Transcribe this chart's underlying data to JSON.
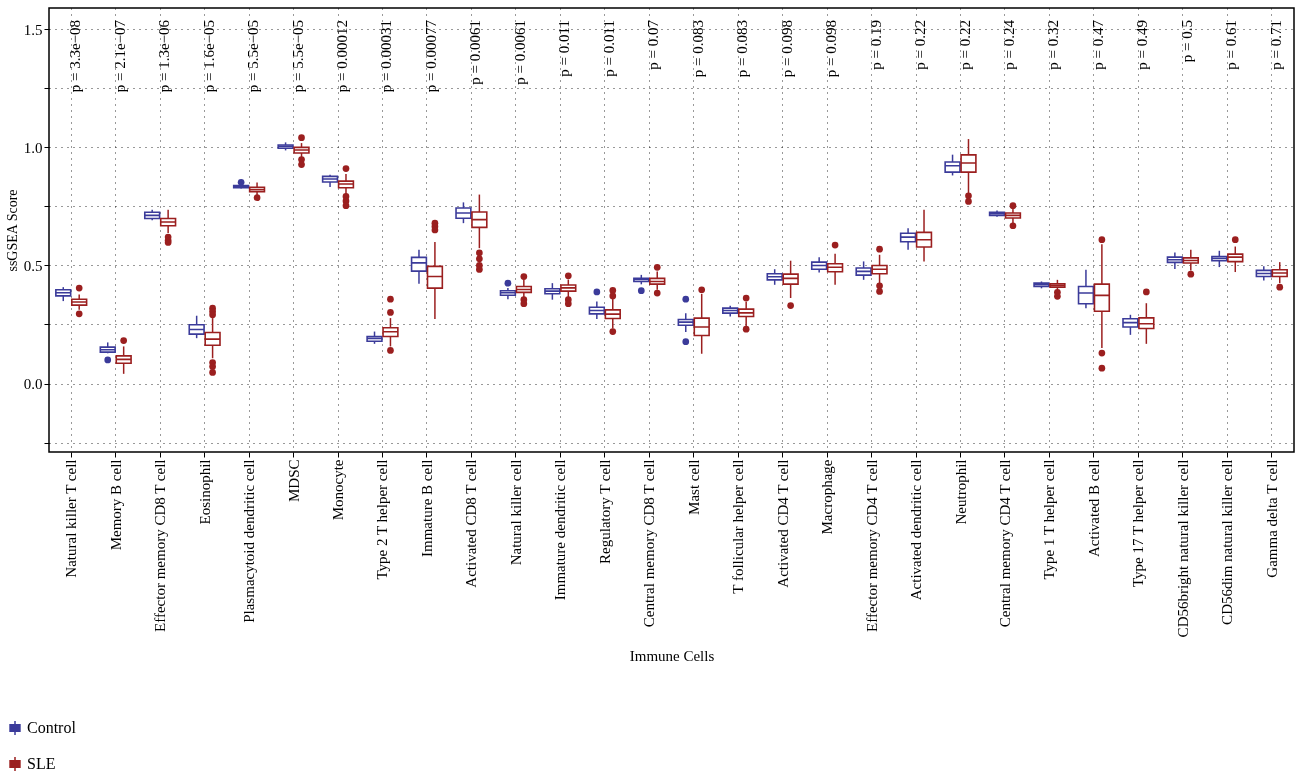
{
  "chart_data": {
    "type": "box",
    "xlabel": "Immune Cells",
    "ylabel": "ssGSEA Score",
    "categories": [
      "Natural killer T cell",
      "Memory B cell",
      "Effector memory CD8 T cell",
      "Eosinophil",
      "Plasmacytoid dendritic cell",
      "MDSC",
      "Monocyte",
      "Type 2 T helper cell",
      "Immature B cell",
      "Activated CD8 T cell",
      "Natural killer cell",
      "Immature dendritic cell",
      "Regulatory T cell",
      "Central memory CD8 T cell",
      "Mast cell",
      "T follicular helper cell",
      "Activated CD4 T cell",
      "Macrophage",
      "Effector memory CD4 T cell",
      "Activated dendritic cell",
      "Neutrophil",
      "Central memory CD4 T cell",
      "Type 1 T helper cell",
      "Activated B cell",
      "Type 17 T helper cell",
      "CD56bright natural killer cell",
      "CD56dim natural killer cell",
      "Gamma delta T cell"
    ],
    "ylim": [
      -0.29,
      1.59
    ],
    "yticks": [
      {
        "value": -0.25,
        "label": null
      },
      {
        "value": 0,
        "label": "0.0"
      },
      {
        "value": 0.25,
        "label": null
      },
      {
        "value": 0.5,
        "label": "0.5"
      },
      {
        "value": 0.75,
        "label": null
      },
      {
        "value": 1,
        "label": "1.0"
      },
      {
        "value": 1.25,
        "label": null
      },
      {
        "value": 1.5,
        "label": "1.5"
      }
    ],
    "grid": true,
    "legend": "bottom left",
    "series": [
      {
        "name": "Control",
        "color": "#3b3b9a",
        "boxes": [
          {
            "low": 0.349,
            "q1": 0.371,
            "median": 0.384,
            "q3": 0.397,
            "high": 0.408
          },
          {
            "low": 0.128,
            "q1": 0.133,
            "median": 0.143,
            "q3": 0.154,
            "high": 0.174,
            "outliers": [
              0.1
            ]
          },
          {
            "low": 0.691,
            "q1": 0.699,
            "median": 0.712,
            "q3": 0.725,
            "high": 0.736
          },
          {
            "low": 0.192,
            "q1": 0.209,
            "median": 0.229,
            "q3": 0.249,
            "high": 0.287
          },
          {
            "low": 0.826,
            "q1": 0.829,
            "median": 0.833,
            "q3": 0.838,
            "high": 0.84,
            "outliers": [
              0.852
            ]
          },
          {
            "low": 0.987,
            "q1": 0.996,
            "median": 1.004,
            "q3": 1.01,
            "high": 1.021
          },
          {
            "low": 0.832,
            "q1": 0.853,
            "median": 0.866,
            "q3": 0.877,
            "high": 0.884
          },
          {
            "low": 0.168,
            "q1": 0.179,
            "median": 0.191,
            "q3": 0.199,
            "high": 0.22
          },
          {
            "low": 0.422,
            "q1": 0.476,
            "median": 0.511,
            "q3": 0.534,
            "high": 0.566
          },
          {
            "low": 0.679,
            "q1": 0.7,
            "median": 0.722,
            "q3": 0.743,
            "high": 0.767
          },
          {
            "low": 0.357,
            "q1": 0.374,
            "median": 0.384,
            "q3": 0.393,
            "high": 0.404,
            "outliers": [
              0.425
            ]
          },
          {
            "low": 0.355,
            "q1": 0.38,
            "median": 0.391,
            "q3": 0.401,
            "high": 0.425
          },
          {
            "low": 0.273,
            "q1": 0.295,
            "median": 0.309,
            "q3": 0.323,
            "high": 0.347,
            "outliers": [
              0.388
            ]
          },
          {
            "low": 0.42,
            "q1": 0.432,
            "median": 0.441,
            "q3": 0.446,
            "high": 0.46,
            "outliers": [
              0.393
            ]
          },
          {
            "low": 0.218,
            "q1": 0.247,
            "median": 0.26,
            "q3": 0.271,
            "high": 0.298,
            "outliers": [
              0.357,
              0.177
            ]
          },
          {
            "low": 0.284,
            "q1": 0.298,
            "median": 0.309,
            "q3": 0.319,
            "high": 0.329
          },
          {
            "low": 0.418,
            "q1": 0.439,
            "median": 0.452,
            "q3": 0.465,
            "high": 0.484
          },
          {
            "low": 0.47,
            "q1": 0.484,
            "median": 0.5,
            "q3": 0.514,
            "high": 0.535
          },
          {
            "low": 0.439,
            "q1": 0.459,
            "median": 0.475,
            "q3": 0.489,
            "high": 0.517
          },
          {
            "low": 0.566,
            "q1": 0.6,
            "median": 0.62,
            "q3": 0.636,
            "high": 0.657
          },
          {
            "low": 0.881,
            "q1": 0.895,
            "median": 0.922,
            "q3": 0.938,
            "high": 0.969
          },
          {
            "low": 0.706,
            "q1": 0.712,
            "median": 0.719,
            "q3": 0.725,
            "high": 0.733
          },
          {
            "low": 0.403,
            "q1": 0.411,
            "median": 0.418,
            "q3": 0.425,
            "high": 0.432
          },
          {
            "low": 0.319,
            "q1": 0.338,
            "median": 0.383,
            "q3": 0.411,
            "high": 0.482
          },
          {
            "low": 0.206,
            "q1": 0.239,
            "median": 0.258,
            "q3": 0.274,
            "high": 0.291
          },
          {
            "low": 0.485,
            "q1": 0.513,
            "median": 0.524,
            "q3": 0.535,
            "high": 0.555
          },
          {
            "low": 0.493,
            "q1": 0.52,
            "median": 0.53,
            "q3": 0.538,
            "high": 0.562
          },
          {
            "low": 0.436,
            "q1": 0.453,
            "median": 0.466,
            "q3": 0.479,
            "high": 0.496
          }
        ]
      },
      {
        "name": "SLE",
        "color": "#9b1f1f",
        "boxes": [
          {
            "low": 0.312,
            "q1": 0.332,
            "median": 0.345,
            "q3": 0.357,
            "high": 0.377,
            "outliers": [
              0.404,
              0.295
            ]
          },
          {
            "low": 0.041,
            "q1": 0.086,
            "median": 0.102,
            "q3": 0.117,
            "high": 0.157,
            "outliers": [
              0.182
            ]
          },
          {
            "low": 0.637,
            "q1": 0.668,
            "median": 0.684,
            "q3": 0.699,
            "high": 0.736,
            "outliers": [
              0.62,
              0.606,
              0.597
            ]
          },
          {
            "low": 0.107,
            "q1": 0.162,
            "median": 0.188,
            "q3": 0.216,
            "high": 0.277,
            "outliers": [
              0.319,
              0.305,
              0.291,
              0.089,
              0.072,
              0.047
            ]
          },
          {
            "low": 0.797,
            "q1": 0.812,
            "median": 0.821,
            "q3": 0.831,
            "high": 0.851,
            "outliers": [
              0.787
            ]
          },
          {
            "low": 0.958,
            "q1": 0.976,
            "median": 0.989,
            "q3": 1.0,
            "high": 1.018,
            "outliers": [
              1.041,
              0.948,
              0.927
            ]
          },
          {
            "low": 0.799,
            "q1": 0.829,
            "median": 0.845,
            "q3": 0.857,
            "high": 0.887,
            "outliers": [
              0.91,
              0.792,
              0.773,
              0.753
            ]
          },
          {
            "low": 0.157,
            "q1": 0.199,
            "median": 0.219,
            "q3": 0.236,
            "high": 0.277,
            "outliers": [
              0.357,
              0.301,
              0.14
            ]
          },
          {
            "low": 0.273,
            "q1": 0.404,
            "median": 0.453,
            "q3": 0.496,
            "high": 0.599,
            "outliers": [
              0.679,
              0.665,
              0.65
            ]
          },
          {
            "low": 0.573,
            "q1": 0.661,
            "median": 0.694,
            "q3": 0.726,
            "high": 0.8,
            "outliers": [
              0.553,
              0.528,
              0.5,
              0.483
            ]
          },
          {
            "low": 0.364,
            "q1": 0.386,
            "median": 0.398,
            "q3": 0.411,
            "high": 0.44,
            "outliers": [
              0.453,
              0.355,
              0.338
            ]
          },
          {
            "low": 0.362,
            "q1": 0.391,
            "median": 0.405,
            "q3": 0.417,
            "high": 0.44,
            "outliers": [
              0.456,
              0.355,
              0.338
            ]
          },
          {
            "low": 0.233,
            "q1": 0.275,
            "median": 0.294,
            "q3": 0.312,
            "high": 0.36,
            "outliers": [
              0.394,
              0.371,
              0.22
            ]
          },
          {
            "low": 0.397,
            "q1": 0.421,
            "median": 0.432,
            "q3": 0.445,
            "high": 0.474,
            "outliers": [
              0.492,
              0.383
            ]
          },
          {
            "low": 0.126,
            "q1": 0.203,
            "median": 0.239,
            "q3": 0.277,
            "high": 0.38,
            "outliers": [
              0.397
            ]
          },
          {
            "low": 0.235,
            "q1": 0.284,
            "median": 0.299,
            "q3": 0.315,
            "high": 0.347,
            "outliers": [
              0.362,
              0.23
            ]
          },
          {
            "low": 0.362,
            "q1": 0.421,
            "median": 0.445,
            "q3": 0.463,
            "high": 0.52,
            "outliers": [
              0.33
            ]
          },
          {
            "low": 0.418,
            "q1": 0.473,
            "median": 0.492,
            "q3": 0.507,
            "high": 0.549,
            "outliers": [
              0.586
            ]
          },
          {
            "low": 0.42,
            "q1": 0.465,
            "median": 0.484,
            "q3": 0.5,
            "high": 0.545,
            "outliers": [
              0.569,
              0.414,
              0.39
            ]
          },
          {
            "low": 0.517,
            "q1": 0.578,
            "median": 0.609,
            "q3": 0.64,
            "high": 0.736
          },
          {
            "low": 0.8,
            "q1": 0.895,
            "median": 0.934,
            "q3": 0.968,
            "high": 1.035,
            "outliers": [
              0.795,
              0.771
            ]
          },
          {
            "low": 0.68,
            "q1": 0.701,
            "median": 0.712,
            "q3": 0.722,
            "high": 0.743,
            "outliers": [
              0.753,
              0.668
            ]
          },
          {
            "low": 0.391,
            "q1": 0.408,
            "median": 0.415,
            "q3": 0.422,
            "high": 0.439,
            "outliers": [
              0.386,
              0.369
            ]
          },
          {
            "low": 0.15,
            "q1": 0.306,
            "median": 0.373,
            "q3": 0.421,
            "high": 0.59,
            "outliers": [
              0.609,
              0.129,
              0.065
            ]
          },
          {
            "low": 0.168,
            "q1": 0.233,
            "median": 0.253,
            "q3": 0.278,
            "high": 0.34,
            "outliers": [
              0.388
            ]
          },
          {
            "low": 0.478,
            "q1": 0.51,
            "median": 0.521,
            "q3": 0.532,
            "high": 0.566,
            "outliers": [
              0.463
            ]
          },
          {
            "low": 0.472,
            "q1": 0.516,
            "median": 0.535,
            "q3": 0.548,
            "high": 0.58,
            "outliers": [
              0.609
            ]
          },
          {
            "low": 0.425,
            "q1": 0.453,
            "median": 0.468,
            "q3": 0.482,
            "high": 0.514,
            "outliers": [
              0.408
            ]
          }
        ]
      }
    ],
    "annotations": [
      "p = 3.3e−08",
      "p = 2.1e−07",
      "p = 1.3e−06",
      "p = 1.6e−05",
      "p = 5.5e−05",
      "p = 5.5e−05",
      "p = 0.00012",
      "p = 0.00031",
      "p = 0.00077",
      "p = 0.0061",
      "p = 0.0061",
      "p = 0.011",
      "p = 0.011",
      "p = 0.07",
      "p = 0.083",
      "p = 0.083",
      "p = 0.098",
      "p = 0.098",
      "p = 0.19",
      "p = 0.22",
      "p = 0.22",
      "p = 0.24",
      "p = 0.32",
      "p = 0.47",
      "p = 0.49",
      "p = 0.5",
      "p = 0.61",
      "p = 0.71"
    ]
  }
}
